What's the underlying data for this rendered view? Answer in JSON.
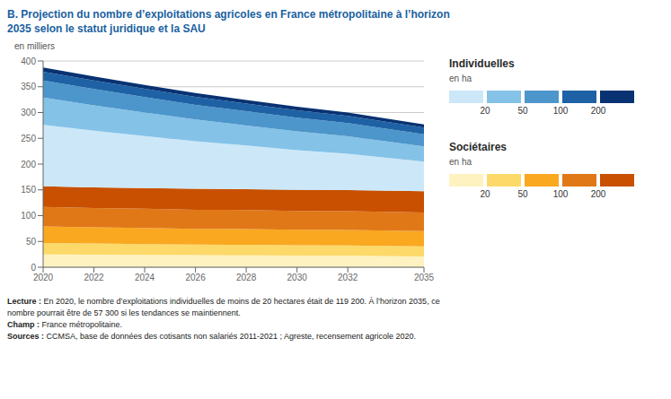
{
  "chart_data": {
    "type": "area",
    "stacked": true,
    "grid": true,
    "legend": "right",
    "title": [
      "B. Projection du nombre d’exploitations agricoles en France métropolitaine à l’horizon",
      "2035 selon le statut juridique et la SAU"
    ],
    "ylabel": "en milliers",
    "x": [
      2020,
      2022,
      2024,
      2026,
      2028,
      2030,
      2032,
      2035
    ],
    "xlim": [
      2020,
      2035
    ],
    "xticks": [
      2020,
      2022,
      2024,
      2026,
      2028,
      2030,
      2032,
      2035
    ],
    "ylim": [
      0,
      400
    ],
    "yticks": [
      0,
      50,
      100,
      150,
      200,
      250,
      300,
      350,
      400
    ],
    "series": [
      {
        "group": "Sociétaires",
        "color": "#fef3c0",
        "values": [
          25.0,
          24.5,
          24.0,
          23.5,
          23.0,
          22.5,
          22.0,
          21.0
        ]
      },
      {
        "group": "Sociétaires",
        "color": "#fdd96a",
        "values": [
          22.0,
          21.5,
          21.0,
          20.5,
          20.5,
          20.0,
          20.0,
          19.5
        ]
      },
      {
        "group": "Sociétaires",
        "color": "#f9a820",
        "values": [
          32.0,
          31.5,
          31.0,
          30.5,
          30.5,
          30.0,
          30.0,
          29.5
        ]
      },
      {
        "group": "Sociétaires",
        "color": "#e07818",
        "values": [
          38.0,
          37.5,
          37.5,
          37.0,
          37.0,
          36.5,
          36.5,
          36.0
        ]
      },
      {
        "group": "Sociétaires",
        "color": "#c85000",
        "values": [
          40.0,
          40.0,
          40.0,
          40.5,
          40.5,
          41.0,
          41.0,
          41.5
        ]
      },
      {
        "group": "Individuelles",
        "color": "#cce8f8",
        "values": [
          119.2,
          110.0,
          101.0,
          92.5,
          84.5,
          77.0,
          70.5,
          57.3
        ]
      },
      {
        "group": "Individuelles",
        "color": "#85c2e8",
        "values": [
          53.0,
          49.0,
          45.5,
          42.0,
          39.0,
          36.5,
          34.0,
          29.5
        ]
      },
      {
        "group": "Individuelles",
        "color": "#4d96cb",
        "values": [
          33.0,
          31.5,
          30.0,
          28.5,
          27.5,
          26.5,
          25.5,
          23.5
        ]
      },
      {
        "group": "Individuelles",
        "color": "#1e62a5",
        "values": [
          17.0,
          16.5,
          16.0,
          15.5,
          15.0,
          14.5,
          14.0,
          13.0
        ]
      },
      {
        "group": "Individuelles",
        "color": "#083272",
        "values": [
          8.0,
          7.8,
          7.5,
          7.3,
          7.0,
          6.8,
          6.5,
          6.0
        ]
      }
    ],
    "legend_subtitle": "en ha",
    "legend_labels": [
      "20",
      "50",
      "100",
      "200"
    ],
    "notes": [
      {
        "bold": "Lecture :",
        "text": " En 2020, le nombre d’exploitations individuelles de moins de 20 hectares était de 119 200. À l’horizon 2035, ce"
      },
      {
        "bold": "",
        "text": "nombre pourrait être de 57 300 si les tendances se maintiennent."
      },
      {
        "bold": "Champ :",
        "text": " France métropolitaine."
      },
      {
        "bold": "Sources :",
        "text": " CCMSA, base de données des cotisants non salariés 2011-2021 ; Agreste, recensement agricole 2020."
      }
    ]
  }
}
